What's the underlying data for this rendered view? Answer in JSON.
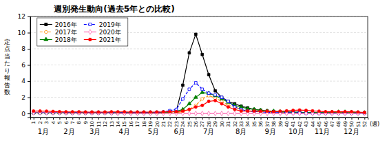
{
  "chart_data": {
    "type": "line",
    "title": "週別発生動向(過去5年との比較)",
    "x_label": "(週)",
    "y_label": "定点当たり報告数",
    "x": [
      1,
      2,
      3,
      4,
      5,
      6,
      7,
      8,
      9,
      10,
      11,
      12,
      13,
      14,
      15,
      16,
      17,
      18,
      19,
      20,
      21,
      22,
      23,
      24,
      25,
      26,
      27,
      28,
      29,
      30,
      31,
      32,
      33,
      34,
      35,
      36,
      37,
      38,
      39,
      40,
      41,
      42,
      43,
      44,
      45,
      46,
      47,
      48,
      49,
      50,
      51,
      52
    ],
    "xlim": [
      0.5,
      52.5
    ],
    "xticks": [
      1,
      2,
      3,
      4,
      5,
      6,
      7,
      8,
      9,
      10,
      11,
      12,
      13,
      14,
      15,
      16,
      17,
      18,
      19,
      20,
      21,
      22,
      23,
      24,
      25,
      26,
      27,
      28,
      29,
      30,
      31,
      32,
      33,
      34,
      35,
      36,
      37,
      38,
      39,
      40,
      41,
      42,
      43,
      44,
      45,
      46,
      47,
      48,
      49,
      50,
      51,
      52
    ],
    "ylim": [
      -0.5,
      12
    ],
    "yticks": [
      0,
      2,
      4,
      6,
      8,
      10,
      12
    ],
    "grid": "y",
    "legend": "upper left",
    "annotations": [
      {
        "text": "1月",
        "x": 2.5
      },
      {
        "text": "2月",
        "x": 6.5
      },
      {
        "text": "3月",
        "x": 10.5
      },
      {
        "text": "4月",
        "x": 15
      },
      {
        "text": "5月",
        "x": 19.5
      },
      {
        "text": "6月",
        "x": 23.5
      },
      {
        "text": "7月",
        "x": 28
      },
      {
        "text": "8月",
        "x": 33
      },
      {
        "text": "9月",
        "x": 37.5
      },
      {
        "text": "10月",
        "x": 41.5
      },
      {
        "text": "11月",
        "x": 45.5
      },
      {
        "text": "12月",
        "x": 50
      }
    ],
    "series": [
      {
        "name": "2016年",
        "color": "#000000",
        "marker": "square",
        "line_style": "solid",
        "values": [
          0.08,
          0.08,
          0.08,
          0.08,
          0.08,
          0.08,
          0.08,
          0.08,
          0.08,
          0.08,
          0.08,
          0.08,
          0.08,
          0.08,
          0.08,
          0.08,
          0.08,
          0.08,
          0.08,
          0.08,
          0.12,
          0.18,
          0.28,
          3.5,
          7.5,
          9.8,
          7.3,
          4.8,
          2.8,
          2.0,
          1.5,
          1.2,
          0.9,
          0.7,
          0.5,
          0.4,
          0.3,
          0.25,
          0.2,
          0.18,
          0.18,
          0.15,
          0.1,
          0.1,
          0.1,
          0.1,
          0.1,
          0.1,
          0.1,
          0.1,
          0.1,
          0.08
        ]
      },
      {
        "name": "2017年",
        "color": "#FF8C00",
        "marker": "circle-open",
        "line_style": "dashed",
        "values": [
          0.1,
          0.1,
          0.1,
          0.1,
          0.1,
          0.1,
          0.1,
          0.1,
          0.1,
          0.1,
          0.1,
          0.1,
          0.1,
          0.1,
          0.1,
          0.1,
          0.1,
          0.1,
          0.1,
          0.1,
          0.1,
          0.1,
          0.12,
          0.2,
          0.5,
          1.0,
          1.8,
          2.2,
          1.9,
          1.5,
          1.0,
          0.8,
          0.5,
          0.3,
          0.25,
          0.2,
          0.18,
          0.12,
          0.1,
          0.1,
          0.1,
          0.1,
          0.1,
          0.1,
          0.1,
          0.1,
          0.1,
          0.1,
          0.1,
          0.1,
          0.1,
          0.1
        ]
      },
      {
        "name": "2018年",
        "color": "#008000",
        "marker": "triangle",
        "line_style": "solid",
        "values": [
          0.1,
          0.1,
          0.1,
          0.1,
          0.1,
          0.1,
          0.1,
          0.1,
          0.1,
          0.1,
          0.1,
          0.1,
          0.1,
          0.1,
          0.1,
          0.1,
          0.1,
          0.1,
          0.1,
          0.1,
          0.12,
          0.18,
          0.28,
          0.5,
          1.2,
          2.0,
          2.6,
          2.5,
          2.2,
          1.8,
          1.4,
          1.0,
          0.8,
          0.6,
          0.5,
          0.4,
          0.3,
          0.28,
          0.22,
          0.18,
          0.15,
          0.15,
          0.12,
          0.12,
          0.1,
          0.12,
          0.15,
          0.18,
          0.18,
          0.15,
          0.1,
          0.1
        ]
      },
      {
        "name": "2019年",
        "color": "#0000FF",
        "marker": "square-open",
        "line_style": "dashed",
        "values": [
          0.1,
          0.1,
          0.1,
          0.1,
          0.1,
          0.1,
          0.1,
          0.1,
          0.1,
          0.1,
          0.1,
          0.1,
          0.1,
          0.1,
          0.1,
          0.1,
          0.1,
          0.1,
          0.12,
          0.15,
          0.18,
          0.35,
          0.5,
          1.8,
          3.0,
          3.8,
          3.0,
          2.5,
          2.3,
          2.0,
          1.5,
          0.8,
          0.5,
          0.3,
          0.25,
          0.2,
          0.15,
          0.12,
          0.1,
          0.1,
          0.08,
          0.08,
          0.05,
          0.05,
          0.05,
          0.05,
          0.05,
          0.05,
          0.05,
          0.05,
          0.05,
          0.05
        ]
      },
      {
        "name": "2020年",
        "color": "#FF69B4",
        "marker": "diamond-open",
        "line_style": "solid",
        "values": [
          0.08,
          0.08,
          0.08,
          0.08,
          0.08,
          0.05,
          0.05,
          0.05,
          0.05,
          0.05,
          0.05,
          0.05,
          0.03,
          0.0,
          0.0,
          0.0,
          0.0,
          0.0,
          0.0,
          0.0,
          0.0,
          0.0,
          0.0,
          0.0,
          0.0,
          0.0,
          0.0,
          0.0,
          0.0,
          0.0,
          0.0,
          0.0,
          0.0,
          0.0,
          0.0,
          0.0,
          0.0,
          0.0,
          0.0,
          0.0,
          0.0,
          0.0,
          0.0,
          0.0,
          0.0,
          0.0,
          0.0,
          0.0,
          0.0,
          0.0,
          0.0,
          0.0
        ]
      },
      {
        "name": "2021年",
        "color": "#FF0000",
        "marker": "circle",
        "line_style": "solid",
        "values": [
          0.3,
          0.3,
          0.28,
          0.25,
          0.22,
          0.2,
          0.2,
          0.2,
          0.18,
          0.18,
          0.18,
          0.18,
          0.2,
          0.2,
          0.2,
          0.18,
          0.18,
          0.18,
          0.18,
          0.18,
          0.2,
          0.22,
          0.22,
          0.3,
          0.5,
          0.8,
          1.0,
          1.5,
          1.6,
          1.2,
          0.8,
          0.5,
          0.3,
          0.3,
          0.3,
          0.28,
          0.28,
          0.22,
          0.28,
          0.32,
          0.38,
          0.42,
          0.38,
          0.32,
          0.28,
          0.22,
          0.22,
          0.22,
          0.22,
          0.22,
          0.18,
          0.12
        ]
      }
    ]
  }
}
